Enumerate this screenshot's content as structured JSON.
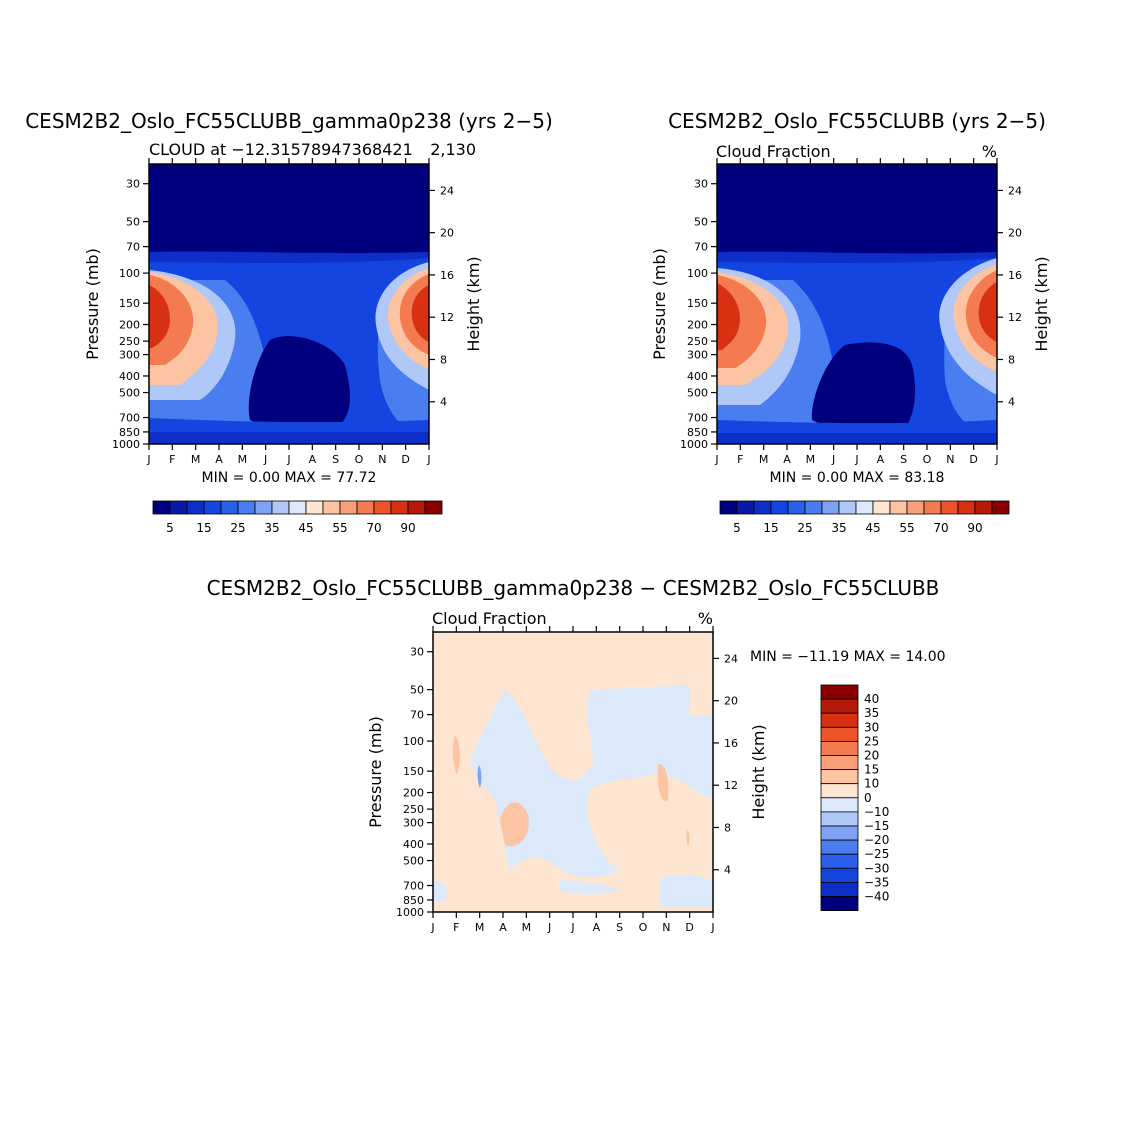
{
  "panels": [
    {
      "title": "CESM2B2_Oslo_FC55CLUBB_gamma0p238 (yrs 2−5)",
      "left_label": "CLOUD at −12.31578947368421",
      "right_label": "2,130",
      "left_axis_label": "Pressure (mb)",
      "right_axis_label": "Height (km)",
      "stats": "MIN =    0.00  MAX =   77.72"
    },
    {
      "title": "CESM2B2_Oslo_FC55CLUBB (yrs 2−5)",
      "left_label": "Cloud Fraction",
      "right_label": "%",
      "left_axis_label": "Pressure (mb)",
      "right_axis_label": "Height (km)",
      "stats": "MIN =    0.00  MAX =   83.18"
    },
    {
      "title": "CESM2B2_Oslo_FC55CLUBB_gamma0p238 − CESM2B2_Oslo_FC55CLUBB",
      "left_label": "Cloud Fraction",
      "right_label": "%",
      "left_axis_label": "Pressure (mb)",
      "right_axis_label": "Height (km)",
      "stats": "MIN = −11.19  MAX =   14.00"
    }
  ],
  "chart_data": [
    {
      "type": "heatmap",
      "title": "CESM2B2_Oslo_FC55CLUBB_gamma0p238 (yrs 2−5)",
      "subtitle_left": "CLOUD at −12.31578947368421",
      "subtitle_right": "2,130",
      "x": [
        "J",
        "F",
        "M",
        "A",
        "M",
        "J",
        "J",
        "A",
        "S",
        "O",
        "N",
        "D",
        "J"
      ],
      "y_pressure_ticks": [
        30,
        50,
        70,
        100,
        150,
        200,
        250,
        300,
        400,
        500,
        700,
        850,
        1000
      ],
      "y_height_ticks": [
        24,
        20,
        16,
        12,
        8,
        4
      ],
      "xlabel": "",
      "ylabel": "Pressure (mb)",
      "y2label": "Height (km)",
      "min": 0.0,
      "max": 77.72,
      "units": "%"
    },
    {
      "type": "heatmap",
      "title": "CESM2B2_Oslo_FC55CLUBB (yrs 2−5)",
      "subtitle_left": "Cloud Fraction",
      "subtitle_right": "%",
      "x": [
        "J",
        "F",
        "M",
        "A",
        "M",
        "J",
        "J",
        "A",
        "S",
        "O",
        "N",
        "D",
        "J"
      ],
      "y_pressure_ticks": [
        30,
        50,
        70,
        100,
        150,
        200,
        250,
        300,
        400,
        500,
        700,
        850,
        1000
      ],
      "y_height_ticks": [
        24,
        20,
        16,
        12,
        8,
        4
      ],
      "ylabel": "Pressure (mb)",
      "y2label": "Height (km)",
      "min": 0.0,
      "max": 83.18,
      "units": "%"
    },
    {
      "type": "heatmap",
      "title": "CESM2B2_Oslo_FC55CLUBB_gamma0p238 − CESM2B2_Oslo_FC55CLUBB",
      "subtitle_left": "Cloud Fraction",
      "subtitle_right": "%",
      "x": [
        "J",
        "F",
        "M",
        "A",
        "M",
        "J",
        "J",
        "A",
        "S",
        "O",
        "N",
        "D",
        "J"
      ],
      "y_pressure_ticks": [
        30,
        50,
        70,
        100,
        150,
        200,
        250,
        300,
        400,
        500,
        700,
        850,
        1000
      ],
      "y_height_ticks": [
        24,
        20,
        16,
        12,
        8,
        4
      ],
      "ylabel": "Pressure (mb)",
      "y2label": "Height (km)",
      "min": -11.19,
      "max": 14.0,
      "units": "%"
    }
  ],
  "colorbar_abs": {
    "colors": [
      "#00007f",
      "#0a1aa8",
      "#0d2ec8",
      "#1445e0",
      "#2a5fe8",
      "#4a7ef0",
      "#7ea3f5",
      "#b0c8f8",
      "#dce9fb",
      "#fde5d2",
      "#fcc4a3",
      "#f9a07a",
      "#f47a50",
      "#ec5428",
      "#d83010",
      "#b51a08",
      "#8a0000"
    ],
    "tick_labels": [
      "5",
      "15",
      "25",
      "35",
      "45",
      "55",
      "70",
      "90"
    ]
  },
  "colorbar_diff": {
    "colors": [
      "#8a0000",
      "#b51a08",
      "#d83010",
      "#ec5428",
      "#f47a50",
      "#f9a07a",
      "#fcc4a3",
      "#fde5d2",
      "#dce9fb",
      "#b0c8f8",
      "#7ea3f5",
      "#4a7ef0",
      "#2a5fe8",
      "#1445e0",
      "#0d2ec8",
      "#00007f"
    ],
    "tick_labels": [
      "40",
      "35",
      "30",
      "25",
      "20",
      "15",
      "10",
      "0",
      "−10",
      "−15",
      "−20",
      "−25",
      "−30",
      "−35",
      "−40"
    ]
  }
}
